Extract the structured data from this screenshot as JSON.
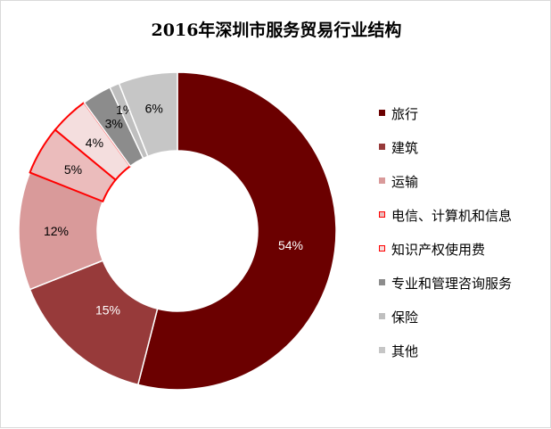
{
  "chart_data": {
    "type": "pie",
    "donut": true,
    "title": "2016年深圳市服务贸易行业结构",
    "categories": [
      "旅行",
      "建筑",
      "运输",
      "电信、计算机和信息",
      "知识产权使用费",
      "专业和管理咨询服务",
      "保险",
      "其他"
    ],
    "values": [
      54,
      15,
      12,
      5,
      4,
      3,
      1,
      6
    ],
    "data_labels": [
      "54%",
      "15%",
      "12%",
      "5%",
      "4%",
      "3%",
      "1%",
      "6%"
    ],
    "legend_position": "right",
    "colors": [
      "#6b0000",
      "#973a3a",
      "#d99a9a",
      "#ebbcbc",
      "#f4dede",
      "#8c8c8c",
      "#bfbfbf",
      "#c6c6c6"
    ],
    "outline_colors": [
      "#ffffff",
      "#ffffff",
      "#ffffff",
      "#ff0000",
      "#ff0000",
      "#ffffff",
      "#ffffff",
      "#ffffff"
    ],
    "label_colors": [
      "#ffffff",
      "#ffffff",
      "#000000",
      "#000000",
      "#000000",
      "#000000",
      "#000000",
      "#000000"
    ]
  }
}
